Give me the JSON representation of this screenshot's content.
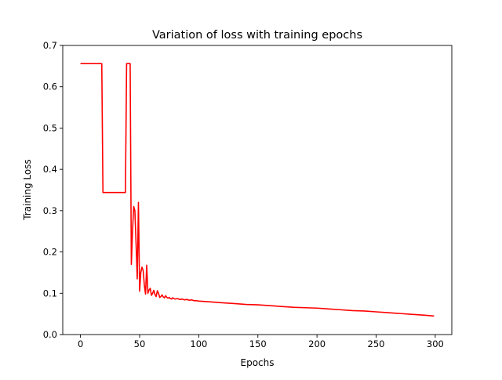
{
  "chart_data": {
    "type": "line",
    "title": "Variation of loss with training epochs",
    "xlabel": "Epochs",
    "ylabel": "Training Loss",
    "xlim": [
      -15,
      314
    ],
    "ylim": [
      0,
      0.7
    ],
    "grid": false,
    "legend": "none",
    "xticks": [
      0,
      50,
      100,
      150,
      200,
      250,
      300
    ],
    "xtick_labels": [
      "0",
      "50",
      "100",
      "150",
      "200",
      "250",
      "300"
    ],
    "yticks": [
      0.0,
      0.1,
      0.2,
      0.3,
      0.4,
      0.5,
      0.6,
      0.7
    ],
    "ytick_labels": [
      "0.0",
      "0.1",
      "0.2",
      "0.3",
      "0.4",
      "0.5",
      "0.6",
      "0.7"
    ],
    "series": [
      {
        "color": "#ff0000",
        "x": [
          0,
          18,
          19,
          38,
          39,
          42,
          43,
          44,
          45,
          46,
          47,
          48,
          49,
          50,
          51,
          52,
          53,
          54,
          55,
          56,
          57,
          58,
          59,
          60,
          61,
          62,
          63,
          64,
          65,
          66,
          67,
          68,
          69,
          70,
          71,
          72,
          73,
          74,
          75,
          76,
          77,
          78,
          79,
          80,
          82,
          84,
          86,
          88,
          90,
          92,
          94,
          96,
          98,
          100,
          110,
          120,
          130,
          140,
          150,
          160,
          170,
          180,
          190,
          200,
          210,
          220,
          230,
          240,
          250,
          260,
          270,
          280,
          290,
          299
        ],
        "y": [
          0.656,
          0.656,
          0.344,
          0.344,
          0.656,
          0.656,
          0.17,
          0.25,
          0.31,
          0.3,
          0.22,
          0.135,
          0.32,
          0.105,
          0.15,
          0.163,
          0.155,
          0.12,
          0.098,
          0.168,
          0.1,
          0.108,
          0.112,
          0.095,
          0.1,
          0.107,
          0.097,
          0.092,
          0.106,
          0.1,
          0.09,
          0.092,
          0.096,
          0.091,
          0.089,
          0.094,
          0.09,
          0.088,
          0.09,
          0.087,
          0.086,
          0.089,
          0.087,
          0.086,
          0.087,
          0.085,
          0.086,
          0.084,
          0.085,
          0.083,
          0.084,
          0.082,
          0.082,
          0.081,
          0.079,
          0.077,
          0.075,
          0.073,
          0.072,
          0.07,
          0.068,
          0.066,
          0.065,
          0.064,
          0.062,
          0.06,
          0.058,
          0.057,
          0.055,
          0.053,
          0.051,
          0.049,
          0.047,
          0.045
        ]
      }
    ]
  }
}
